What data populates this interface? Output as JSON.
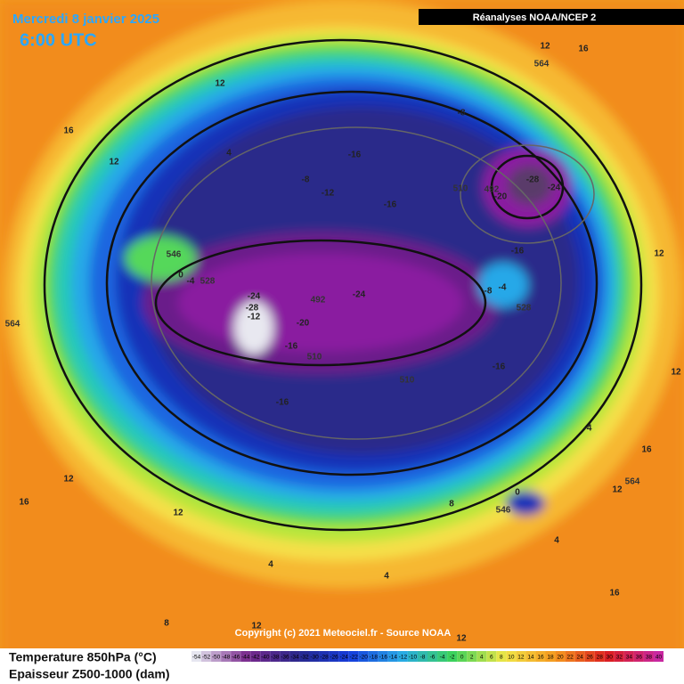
{
  "header": {
    "title": "Mercredi 8 janvier 2025",
    "time": "6:00 UTC",
    "source": "Réanalyses NOAA/NCEP 2"
  },
  "copyright": "Copyright (c) 2021 Meteociel.fr - Source NOAA",
  "legend": {
    "line1": "Temperature 850hPa (°C)",
    "line2": "Epaisseur Z500-1000 (dam)",
    "scale": [
      -54,
      -52,
      -50,
      -48,
      -46,
      -44,
      -42,
      -40,
      -38,
      -36,
      -34,
      -32,
      -30,
      -28,
      -26,
      -24,
      -22,
      -20,
      -18,
      -16,
      -14,
      -12,
      -10,
      -8,
      -6,
      -4,
      -2,
      0,
      2,
      4,
      6,
      8,
      10,
      12,
      14,
      16,
      18,
      20,
      22,
      24,
      26,
      28,
      30,
      32,
      34,
      36,
      38,
      40
    ]
  },
  "map": {
    "temperature_labels": [
      12,
      16,
      12,
      16,
      4,
      12,
      -8,
      -16,
      -8,
      -12,
      -16,
      -28,
      -24,
      -20,
      -16,
      12,
      -8,
      -4,
      -4,
      0,
      -24,
      -28,
      -12,
      -24,
      -20,
      -16,
      -16,
      12,
      -16,
      -4,
      16,
      12,
      12,
      16,
      0,
      12,
      8,
      4,
      4,
      4,
      16,
      8,
      12,
      12
    ],
    "thickness_labels": [
      564,
      510,
      492,
      528,
      492,
      510,
      510,
      528,
      564,
      564,
      546,
      546
    ]
  }
}
